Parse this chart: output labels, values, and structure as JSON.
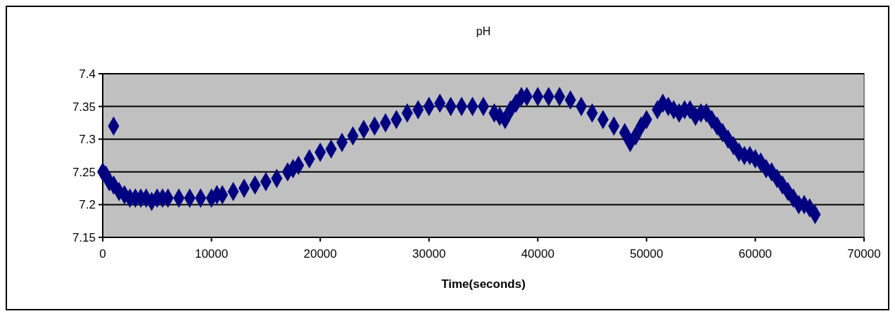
{
  "chart_data": {
    "type": "scatter",
    "title": "pH",
    "xlabel": "Time(seconds)",
    "marker": "diamond",
    "grid": "y",
    "xlim": [
      0,
      70000
    ],
    "xticks": [
      0,
      10000,
      20000,
      30000,
      40000,
      50000,
      60000,
      70000
    ],
    "ylim": [
      7.15,
      7.4
    ],
    "yticks": [
      7.15,
      7.2,
      7.25,
      7.3,
      7.35,
      7.4
    ],
    "series": [
      {
        "color": "#000080",
        "x": [
          0,
          300,
          600,
          1000,
          1000,
          1500,
          2000,
          2500,
          3000,
          3500,
          4000,
          4500,
          5000,
          5500,
          6000,
          7000,
          8000,
          9000,
          10000,
          10500,
          11000,
          12000,
          13000,
          14000,
          15000,
          16000,
          17000,
          17500,
          18000,
          19000,
          20000,
          21000,
          22000,
          23000,
          24000,
          25000,
          26000,
          27000,
          28000,
          29000,
          30000,
          31000,
          32000,
          33000,
          34000,
          35000,
          36000,
          36500,
          37000,
          37500,
          38000,
          38500,
          39000,
          40000,
          41000,
          42000,
          43000,
          44000,
          45000,
          46000,
          47000,
          48000,
          48500,
          49000,
          49500,
          50000,
          51000,
          51500,
          52000,
          52500,
          53000,
          53500,
          54000,
          54500,
          55000,
          55500,
          56000,
          56500,
          57000,
          57500,
          58000,
          58500,
          59000,
          59500,
          60000,
          60500,
          61000,
          61500,
          62000,
          62500,
          63000,
          63500,
          64000,
          64500,
          65000,
          65500
        ],
        "values": [
          7.25,
          7.245,
          7.235,
          7.23,
          7.32,
          7.22,
          7.215,
          7.21,
          7.21,
          7.21,
          7.21,
          7.205,
          7.21,
          7.21,
          7.21,
          7.21,
          7.21,
          7.21,
          7.21,
          7.215,
          7.215,
          7.22,
          7.225,
          7.23,
          7.235,
          7.24,
          7.25,
          7.255,
          7.26,
          7.27,
          7.28,
          7.285,
          7.295,
          7.305,
          7.315,
          7.32,
          7.325,
          7.33,
          7.34,
          7.345,
          7.35,
          7.355,
          7.35,
          7.35,
          7.35,
          7.35,
          7.34,
          7.335,
          7.33,
          7.345,
          7.355,
          7.365,
          7.365,
          7.365,
          7.365,
          7.365,
          7.36,
          7.35,
          7.34,
          7.33,
          7.32,
          7.31,
          7.295,
          7.305,
          7.32,
          7.33,
          7.345,
          7.355,
          7.35,
          7.345,
          7.34,
          7.345,
          7.345,
          7.335,
          7.34,
          7.34,
          7.33,
          7.32,
          7.31,
          7.3,
          7.29,
          7.28,
          7.275,
          7.275,
          7.27,
          7.265,
          7.255,
          7.25,
          7.24,
          7.23,
          7.22,
          7.21,
          7.2,
          7.2,
          7.195,
          7.185
        ]
      }
    ]
  }
}
